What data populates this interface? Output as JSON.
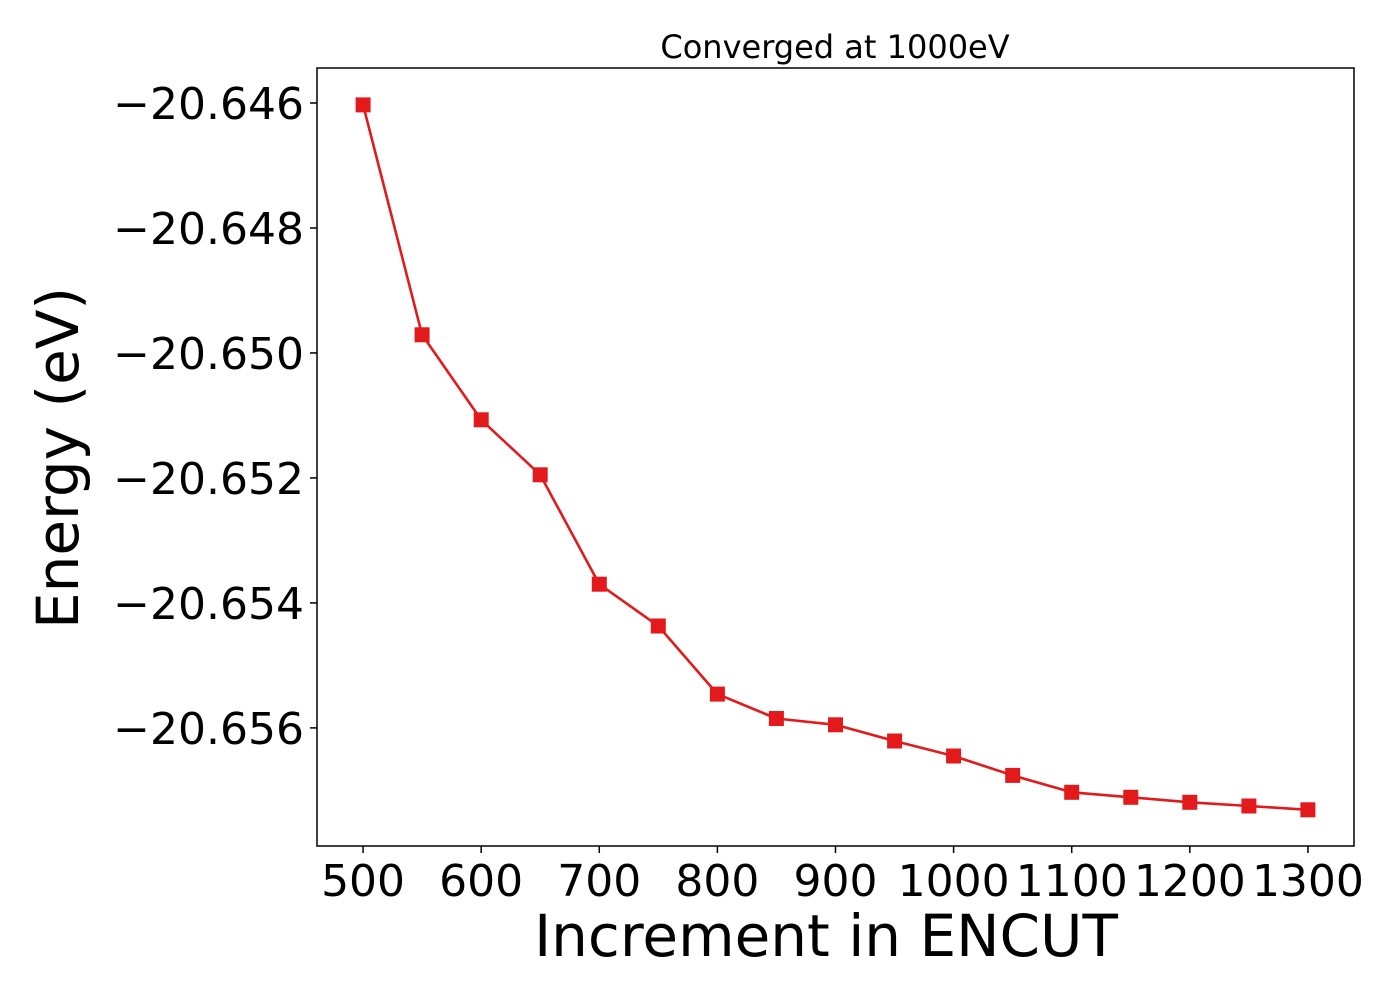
{
  "chart_data": {
    "type": "line",
    "title": "Converged at 1000eV",
    "xlabel": "Increment in ENCUT",
    "ylabel": "Energy (eV)",
    "x": [
      500,
      550,
      600,
      650,
      700,
      750,
      800,
      850,
      900,
      950,
      1000,
      1050,
      1100,
      1150,
      1200,
      1250,
      1300
    ],
    "xticks": [
      500,
      600,
      700,
      800,
      900,
      1000,
      1100,
      1200,
      1300
    ],
    "yticks": [
      -20.646,
      -20.648,
      -20.65,
      -20.652,
      -20.654,
      -20.656
    ],
    "ytick_labels": [
      "−20.646",
      "−20.648",
      "−20.650",
      "−20.652",
      "−20.654",
      "−20.656"
    ],
    "xlim": [
      461,
      1339
    ],
    "ylim": [
      -20.65789,
      -20.64544
    ],
    "grid": false,
    "series": [
      {
        "color": "#e31a1c",
        "marker": "square",
        "values": [
          -20.64603,
          -20.64971,
          -20.65107,
          -20.65195,
          -20.6537,
          -20.65437,
          -20.65546,
          -20.65585,
          -20.65595,
          -20.65621,
          -20.65645,
          -20.65676,
          -20.65703,
          -20.65711,
          -20.65719,
          -20.65725,
          -20.65731
        ]
      }
    ]
  }
}
